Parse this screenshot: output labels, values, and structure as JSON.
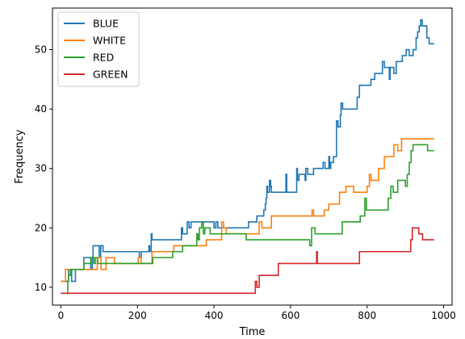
{
  "chart_data": {
    "type": "line",
    "title": "",
    "xlabel": "Time",
    "ylabel": "Frequency",
    "xlim": [
      -22,
      1022
    ],
    "ylim": [
      7,
      57
    ],
    "xticks": [
      0,
      200,
      400,
      600,
      800,
      1000
    ],
    "yticks": [
      10,
      20,
      30,
      40,
      50
    ],
    "grid": false,
    "legend_position": "upper left",
    "series": [
      {
        "name": "BLUE",
        "color": "#1f77b4",
        "points": [
          [
            0,
            11
          ],
          [
            12,
            11
          ],
          [
            20,
            11
          ],
          [
            20,
            13
          ],
          [
            28,
            13
          ],
          [
            28,
            11
          ],
          [
            38,
            11
          ],
          [
            38,
            13
          ],
          [
            60,
            13
          ],
          [
            60,
            15
          ],
          [
            78,
            15
          ],
          [
            78,
            13
          ],
          [
            82,
            13
          ],
          [
            82,
            15
          ],
          [
            84,
            15
          ],
          [
            84,
            17
          ],
          [
            100,
            17
          ],
          [
            100,
            15
          ],
          [
            104,
            15
          ],
          [
            104,
            17
          ],
          [
            110,
            17
          ],
          [
            110,
            16
          ],
          [
            205,
            16
          ],
          [
            205,
            15
          ],
          [
            210,
            15
          ],
          [
            210,
            16
          ],
          [
            230,
            16
          ],
          [
            230,
            17
          ],
          [
            232,
            17
          ],
          [
            232,
            16
          ],
          [
            236,
            16
          ],
          [
            236,
            19
          ],
          [
            238,
            19
          ],
          [
            238,
            18
          ],
          [
            315,
            18
          ],
          [
            315,
            20
          ],
          [
            318,
            20
          ],
          [
            318,
            19
          ],
          [
            330,
            19
          ],
          [
            330,
            21
          ],
          [
            335,
            21
          ],
          [
            335,
            20
          ],
          [
            340,
            20
          ],
          [
            340,
            21
          ],
          [
            400,
            21
          ],
          [
            400,
            20
          ],
          [
            405,
            20
          ],
          [
            405,
            21
          ],
          [
            410,
            21
          ],
          [
            410,
            20
          ],
          [
            490,
            20
          ],
          [
            490,
            21
          ],
          [
            512,
            21
          ],
          [
            512,
            22
          ],
          [
            530,
            22
          ],
          [
            530,
            23
          ],
          [
            534,
            23
          ],
          [
            534,
            24
          ],
          [
            536,
            24
          ],
          [
            536,
            25
          ],
          [
            538,
            25
          ],
          [
            538,
            27
          ],
          [
            540,
            27
          ],
          [
            540,
            26
          ],
          [
            545,
            26
          ],
          [
            545,
            28
          ],
          [
            548,
            28
          ],
          [
            548,
            27
          ],
          [
            550,
            27
          ],
          [
            550,
            26
          ],
          [
            588,
            26
          ],
          [
            588,
            29
          ],
          [
            590,
            29
          ],
          [
            590,
            26
          ],
          [
            616,
            26
          ],
          [
            616,
            30
          ],
          [
            618,
            30
          ],
          [
            618,
            28
          ],
          [
            622,
            28
          ],
          [
            622,
            29
          ],
          [
            638,
            29
          ],
          [
            638,
            28
          ],
          [
            640,
            28
          ],
          [
            640,
            30
          ],
          [
            645,
            30
          ],
          [
            645,
            29
          ],
          [
            660,
            29
          ],
          [
            660,
            30
          ],
          [
            685,
            30
          ],
          [
            685,
            31
          ],
          [
            690,
            31
          ],
          [
            690,
            30
          ],
          [
            700,
            30
          ],
          [
            700,
            32
          ],
          [
            702,
            32
          ],
          [
            702,
            30
          ],
          [
            705,
            30
          ],
          [
            705,
            31
          ],
          [
            712,
            31
          ],
          [
            712,
            32
          ],
          [
            720,
            32
          ],
          [
            720,
            38
          ],
          [
            724,
            38
          ],
          [
            724,
            37
          ],
          [
            730,
            37
          ],
          [
            730,
            39
          ],
          [
            732,
            39
          ],
          [
            732,
            41
          ],
          [
            736,
            41
          ],
          [
            736,
            40
          ],
          [
            774,
            40
          ],
          [
            774,
            42
          ],
          [
            780,
            42
          ],
          [
            780,
            44
          ],
          [
            810,
            44
          ],
          [
            810,
            45
          ],
          [
            820,
            45
          ],
          [
            820,
            46
          ],
          [
            840,
            46
          ],
          [
            840,
            48
          ],
          [
            845,
            48
          ],
          [
            845,
            47
          ],
          [
            858,
            47
          ],
          [
            858,
            45
          ],
          [
            860,
            45
          ],
          [
            860,
            47
          ],
          [
            870,
            47
          ],
          [
            870,
            46
          ],
          [
            876,
            46
          ],
          [
            876,
            48
          ],
          [
            892,
            48
          ],
          [
            892,
            49
          ],
          [
            902,
            49
          ],
          [
            902,
            50
          ],
          [
            910,
            50
          ],
          [
            910,
            49
          ],
          [
            920,
            49
          ],
          [
            920,
            50
          ],
          [
            928,
            50
          ],
          [
            928,
            52
          ],
          [
            932,
            52
          ],
          [
            932,
            53
          ],
          [
            936,
            53
          ],
          [
            936,
            54
          ],
          [
            940,
            54
          ],
          [
            940,
            55
          ],
          [
            944,
            55
          ],
          [
            944,
            54
          ],
          [
            956,
            54
          ],
          [
            956,
            52
          ],
          [
            962,
            52
          ],
          [
            962,
            51
          ],
          [
            975,
            51
          ]
        ]
      },
      {
        "name": "WHITE",
        "color": "#ff7f0e",
        "points": [
          [
            0,
            11
          ],
          [
            12,
            11
          ],
          [
            12,
            13
          ],
          [
            95,
            13
          ],
          [
            95,
            15
          ],
          [
            105,
            15
          ],
          [
            105,
            13
          ],
          [
            118,
            13
          ],
          [
            118,
            15
          ],
          [
            140,
            15
          ],
          [
            140,
            14
          ],
          [
            202,
            14
          ],
          [
            202,
            15
          ],
          [
            210,
            15
          ],
          [
            210,
            14
          ],
          [
            238,
            14
          ],
          [
            238,
            16
          ],
          [
            295,
            16
          ],
          [
            295,
            17
          ],
          [
            380,
            17
          ],
          [
            380,
            18
          ],
          [
            420,
            18
          ],
          [
            420,
            21
          ],
          [
            425,
            21
          ],
          [
            425,
            20
          ],
          [
            432,
            20
          ],
          [
            432,
            19
          ],
          [
            518,
            19
          ],
          [
            518,
            21
          ],
          [
            525,
            21
          ],
          [
            525,
            20
          ],
          [
            550,
            20
          ],
          [
            550,
            22
          ],
          [
            656,
            22
          ],
          [
            656,
            23
          ],
          [
            660,
            23
          ],
          [
            660,
            22
          ],
          [
            688,
            22
          ],
          [
            688,
            23
          ],
          [
            700,
            23
          ],
          [
            700,
            24
          ],
          [
            728,
            24
          ],
          [
            728,
            26
          ],
          [
            745,
            26
          ],
          [
            745,
            27
          ],
          [
            765,
            27
          ],
          [
            765,
            26
          ],
          [
            800,
            26
          ],
          [
            800,
            27
          ],
          [
            806,
            27
          ],
          [
            806,
            29
          ],
          [
            810,
            29
          ],
          [
            810,
            28
          ],
          [
            830,
            28
          ],
          [
            830,
            30
          ],
          [
            845,
            30
          ],
          [
            845,
            32
          ],
          [
            870,
            32
          ],
          [
            870,
            34
          ],
          [
            880,
            34
          ],
          [
            880,
            33
          ],
          [
            890,
            33
          ],
          [
            890,
            35
          ],
          [
            975,
            35
          ]
        ]
      },
      {
        "name": "RED",
        "color": "#2ca02c",
        "points": [
          [
            0,
            9
          ],
          [
            18,
            9
          ],
          [
            18,
            11
          ],
          [
            20,
            11
          ],
          [
            20,
            12
          ],
          [
            25,
            12
          ],
          [
            25,
            13
          ],
          [
            60,
            13
          ],
          [
            60,
            14
          ],
          [
            78,
            14
          ],
          [
            78,
            15
          ],
          [
            86,
            15
          ],
          [
            86,
            14
          ],
          [
            90,
            14
          ],
          [
            90,
            15
          ],
          [
            96,
            15
          ],
          [
            96,
            14
          ],
          [
            240,
            14
          ],
          [
            240,
            15
          ],
          [
            292,
            15
          ],
          [
            292,
            16
          ],
          [
            318,
            16
          ],
          [
            318,
            17
          ],
          [
            355,
            17
          ],
          [
            355,
            19
          ],
          [
            358,
            19
          ],
          [
            358,
            18
          ],
          [
            362,
            18
          ],
          [
            362,
            20
          ],
          [
            368,
            20
          ],
          [
            368,
            21
          ],
          [
            372,
            21
          ],
          [
            372,
            19
          ],
          [
            376,
            19
          ],
          [
            376,
            20
          ],
          [
            390,
            20
          ],
          [
            390,
            19
          ],
          [
            484,
            19
          ],
          [
            484,
            18
          ],
          [
            650,
            18
          ],
          [
            650,
            17
          ],
          [
            655,
            17
          ],
          [
            655,
            20
          ],
          [
            664,
            20
          ],
          [
            664,
            19
          ],
          [
            735,
            19
          ],
          [
            735,
            21
          ],
          [
            782,
            21
          ],
          [
            782,
            22
          ],
          [
            794,
            22
          ],
          [
            794,
            25
          ],
          [
            798,
            25
          ],
          [
            798,
            23
          ],
          [
            855,
            23
          ],
          [
            855,
            25
          ],
          [
            862,
            25
          ],
          [
            862,
            27
          ],
          [
            868,
            27
          ],
          [
            868,
            26
          ],
          [
            880,
            26
          ],
          [
            880,
            28
          ],
          [
            900,
            28
          ],
          [
            900,
            27
          ],
          [
            905,
            27
          ],
          [
            905,
            29
          ],
          [
            910,
            29
          ],
          [
            910,
            31
          ],
          [
            915,
            31
          ],
          [
            915,
            33
          ],
          [
            920,
            33
          ],
          [
            920,
            34
          ],
          [
            958,
            34
          ],
          [
            958,
            33
          ],
          [
            975,
            33
          ]
        ]
      },
      {
        "name": "GREEN",
        "color": "#d62728",
        "points": [
          [
            0,
            9
          ],
          [
            508,
            9
          ],
          [
            508,
            11
          ],
          [
            512,
            11
          ],
          [
            512,
            10
          ],
          [
            518,
            10
          ],
          [
            518,
            12
          ],
          [
            568,
            12
          ],
          [
            568,
            14
          ],
          [
            668,
            14
          ],
          [
            668,
            16
          ],
          [
            670,
            16
          ],
          [
            670,
            14
          ],
          [
            780,
            14
          ],
          [
            780,
            16
          ],
          [
            914,
            16
          ],
          [
            914,
            18
          ],
          [
            918,
            18
          ],
          [
            918,
            20
          ],
          [
            935,
            20
          ],
          [
            935,
            19
          ],
          [
            945,
            19
          ],
          [
            945,
            18
          ],
          [
            975,
            18
          ]
        ]
      }
    ]
  }
}
